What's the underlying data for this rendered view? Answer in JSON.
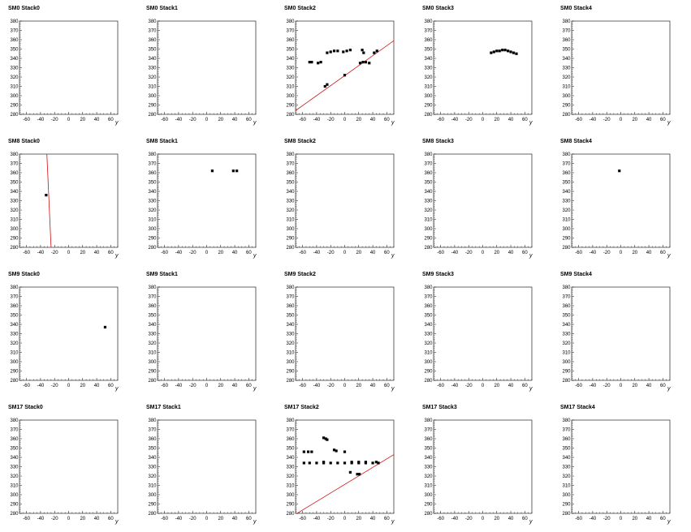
{
  "colors": {
    "fit_line": "#d01010",
    "hits": "#000000",
    "axes": "#000000"
  },
  "chart_data": [
    {
      "type": "scatter",
      "title": "SM0 Stack0",
      "xlabel": "y",
      "xlim": [
        -70,
        70
      ],
      "ylim": [
        280,
        380
      ],
      "xticks": [
        -60,
        -40,
        -20,
        0,
        20,
        40,
        60
      ],
      "yticks": [
        280,
        290,
        300,
        310,
        320,
        330,
        340,
        350,
        360,
        370,
        380
      ],
      "points": [],
      "lines": []
    },
    {
      "type": "scatter",
      "title": "SM0 Stack1",
      "xlabel": "y",
      "xlim": [
        -70,
        70
      ],
      "ylim": [
        280,
        380
      ],
      "xticks": [
        -60,
        -40,
        -20,
        0,
        20,
        40,
        60
      ],
      "yticks": [
        280,
        290,
        300,
        310,
        320,
        330,
        340,
        350,
        360,
        370,
        380
      ],
      "points": [],
      "lines": []
    },
    {
      "type": "scatter",
      "title": "SM0 Stack2",
      "xlabel": "y",
      "xlim": [
        -70,
        70
      ],
      "ylim": [
        280,
        380
      ],
      "xticks": [
        -60,
        -40,
        -20,
        0,
        20,
        40,
        60
      ],
      "yticks": [
        280,
        290,
        300,
        310,
        320,
        330,
        340,
        350,
        360,
        370,
        380
      ],
      "points": [
        [
          -50,
          336
        ],
        [
          -47,
          336
        ],
        [
          -38,
          335
        ],
        [
          -34,
          336
        ],
        [
          -25,
          346
        ],
        [
          -20,
          347
        ],
        [
          -15,
          348
        ],
        [
          -10,
          348
        ],
        [
          -2,
          347
        ],
        [
          3,
          348
        ],
        [
          8,
          349
        ],
        [
          -28,
          310
        ],
        [
          -25,
          312
        ],
        [
          0,
          322
        ],
        [
          25,
          349
        ],
        [
          27,
          346
        ],
        [
          22,
          335
        ],
        [
          26,
          336
        ],
        [
          30,
          336
        ],
        [
          35,
          335
        ],
        [
          42,
          346
        ],
        [
          46,
          348
        ]
      ],
      "lines": [
        [
          [
            -70,
            284
          ],
          [
            70,
            359
          ]
        ]
      ]
    },
    {
      "type": "scatter",
      "title": "SM0 Stack3",
      "xlabel": "y",
      "xlim": [
        -70,
        70
      ],
      "ylim": [
        280,
        380
      ],
      "xticks": [
        -60,
        -40,
        -20,
        0,
        20,
        40,
        60
      ],
      "yticks": [
        280,
        290,
        300,
        310,
        320,
        330,
        340,
        350,
        360,
        370,
        380
      ],
      "points": [
        [
          12,
          346
        ],
        [
          16,
          347
        ],
        [
          20,
          348
        ],
        [
          24,
          348
        ],
        [
          28,
          349
        ],
        [
          32,
          349
        ],
        [
          36,
          348
        ],
        [
          40,
          347
        ],
        [
          44,
          346
        ],
        [
          48,
          345
        ]
      ],
      "lines": []
    },
    {
      "type": "scatter",
      "title": "SM0 Stack4",
      "xlabel": "y",
      "xlim": [
        -70,
        70
      ],
      "ylim": [
        280,
        380
      ],
      "xticks": [
        -60,
        -40,
        -20,
        0,
        20,
        40,
        60
      ],
      "yticks": [
        280,
        290,
        300,
        310,
        320,
        330,
        340,
        350,
        360,
        370,
        380
      ],
      "points": [],
      "lines": []
    },
    {
      "type": "scatter",
      "title": "SM8 Stack0",
      "xlabel": "y",
      "xlim": [
        -70,
        70
      ],
      "ylim": [
        280,
        380
      ],
      "xticks": [
        -60,
        -40,
        -20,
        0,
        20,
        40,
        60
      ],
      "yticks": [
        280,
        290,
        300,
        310,
        320,
        330,
        340,
        350,
        360,
        370,
        380
      ],
      "points": [
        [
          -32,
          336
        ]
      ],
      "lines": [
        [
          [
            -31,
            380
          ],
          [
            -25,
            280
          ]
        ]
      ]
    },
    {
      "type": "scatter",
      "title": "SM8 Stack1",
      "xlabel": "y",
      "xlim": [
        -70,
        70
      ],
      "ylim": [
        280,
        380
      ],
      "xticks": [
        -60,
        -40,
        -20,
        0,
        20,
        40,
        60
      ],
      "yticks": [
        280,
        290,
        300,
        310,
        320,
        330,
        340,
        350,
        360,
        370,
        380
      ],
      "points": [
        [
          8,
          362
        ],
        [
          38,
          362
        ],
        [
          43,
          362
        ]
      ],
      "lines": []
    },
    {
      "type": "scatter",
      "title": "SM8 Stack2",
      "xlabel": "y",
      "xlim": [
        -70,
        70
      ],
      "ylim": [
        280,
        380
      ],
      "xticks": [
        -60,
        -40,
        -20,
        0,
        20,
        40,
        60
      ],
      "yticks": [
        280,
        290,
        300,
        310,
        320,
        330,
        340,
        350,
        360,
        370,
        380
      ],
      "points": [],
      "lines": []
    },
    {
      "type": "scatter",
      "title": "SM8 Stack3",
      "xlabel": "y",
      "xlim": [
        -70,
        70
      ],
      "ylim": [
        280,
        380
      ],
      "xticks": [
        -60,
        -40,
        -20,
        0,
        20,
        40,
        60
      ],
      "yticks": [
        280,
        290,
        300,
        310,
        320,
        330,
        340,
        350,
        360,
        370,
        380
      ],
      "points": [],
      "lines": []
    },
    {
      "type": "scatter",
      "title": "SM8 Stack4",
      "xlabel": "y",
      "xlim": [
        -70,
        70
      ],
      "ylim": [
        280,
        380
      ],
      "xticks": [
        -60,
        -40,
        -20,
        0,
        20,
        40,
        60
      ],
      "yticks": [
        280,
        290,
        300,
        310,
        320,
        330,
        340,
        350,
        360,
        370,
        380
      ],
      "points": [
        [
          -2,
          362
        ]
      ],
      "lines": []
    },
    {
      "type": "scatter",
      "title": "SM9 Stack0",
      "xlabel": "y",
      "xlim": [
        -70,
        70
      ],
      "ylim": [
        280,
        380
      ],
      "xticks": [
        -60,
        -40,
        -20,
        0,
        20,
        40,
        60
      ],
      "yticks": [
        280,
        290,
        300,
        310,
        320,
        330,
        340,
        350,
        360,
        370,
        380
      ],
      "points": [
        [
          52,
          337
        ]
      ],
      "lines": []
    },
    {
      "type": "scatter",
      "title": "SM9 Stack1",
      "xlabel": "y",
      "xlim": [
        -70,
        70
      ],
      "ylim": [
        280,
        380
      ],
      "xticks": [
        -60,
        -40,
        -20,
        0,
        20,
        40,
        60
      ],
      "yticks": [
        280,
        290,
        300,
        310,
        320,
        330,
        340,
        350,
        360,
        370,
        380
      ],
      "points": [],
      "lines": []
    },
    {
      "type": "scatter",
      "title": "SM9 Stack2",
      "xlabel": "y",
      "xlim": [
        -70,
        70
      ],
      "ylim": [
        280,
        380
      ],
      "xticks": [
        -60,
        -40,
        -20,
        0,
        20,
        40,
        60
      ],
      "yticks": [
        280,
        290,
        300,
        310,
        320,
        330,
        340,
        350,
        360,
        370,
        380
      ],
      "points": [],
      "lines": []
    },
    {
      "type": "scatter",
      "title": "SM9 Stack3",
      "xlabel": "y",
      "xlim": [
        -70,
        70
      ],
      "ylim": [
        280,
        380
      ],
      "xticks": [
        -60,
        -40,
        -20,
        0,
        20,
        40,
        60
      ],
      "yticks": [
        280,
        290,
        300,
        310,
        320,
        330,
        340,
        350,
        360,
        370,
        380
      ],
      "points": [],
      "lines": []
    },
    {
      "type": "scatter",
      "title": "SM9 Stack4",
      "xlabel": "y",
      "xlim": [
        -70,
        70
      ],
      "ylim": [
        280,
        380
      ],
      "xticks": [
        -60,
        -40,
        -20,
        0,
        20,
        40,
        60
      ],
      "yticks": [
        280,
        290,
        300,
        310,
        320,
        330,
        340,
        350,
        360,
        370,
        380
      ],
      "points": [],
      "lines": []
    },
    {
      "type": "scatter",
      "title": "SM17 Stack0",
      "xlabel": "y",
      "xlim": [
        -70,
        70
      ],
      "ylim": [
        280,
        380
      ],
      "xticks": [
        -60,
        -40,
        -20,
        0,
        20,
        40,
        60
      ],
      "yticks": [
        280,
        290,
        300,
        310,
        320,
        330,
        340,
        350,
        360,
        370,
        380
      ],
      "points": [],
      "lines": []
    },
    {
      "type": "scatter",
      "title": "SM17 Stack1",
      "xlabel": "y",
      "xlim": [
        -70,
        70
      ],
      "ylim": [
        280,
        380
      ],
      "xticks": [
        -60,
        -40,
        -20,
        0,
        20,
        40,
        60
      ],
      "yticks": [
        280,
        290,
        300,
        310,
        320,
        330,
        340,
        350,
        360,
        370,
        380
      ],
      "points": [],
      "lines": []
    },
    {
      "type": "scatter",
      "title": "SM17 Stack2",
      "xlabel": "y",
      "xlim": [
        -70,
        70
      ],
      "ylim": [
        280,
        380
      ],
      "xticks": [
        -60,
        -40,
        -20,
        0,
        20,
        40,
        60
      ],
      "yticks": [
        280,
        290,
        300,
        310,
        320,
        330,
        340,
        350,
        360,
        370,
        380
      ],
      "points": [
        [
          -58,
          346
        ],
        [
          -52,
          346
        ],
        [
          -47,
          346
        ],
        [
          -30,
          361
        ],
        [
          -27,
          360
        ],
        [
          -25,
          359
        ],
        [
          -15,
          348
        ],
        [
          -12,
          347
        ],
        [
          0,
          346
        ],
        [
          -30,
          335
        ],
        [
          -58,
          334
        ],
        [
          -50,
          334
        ],
        [
          -40,
          334
        ],
        [
          -30,
          334
        ],
        [
          -20,
          334
        ],
        [
          -10,
          334
        ],
        [
          0,
          334
        ],
        [
          10,
          334
        ],
        [
          20,
          334
        ],
        [
          30,
          334
        ],
        [
          40,
          334
        ],
        [
          48,
          334
        ],
        [
          10,
          335
        ],
        [
          20,
          335
        ],
        [
          30,
          335
        ],
        [
          45,
          335
        ],
        [
          8,
          324
        ],
        [
          18,
          322
        ],
        [
          21,
          322
        ]
      ],
      "lines": [
        [
          [
            -70,
            279
          ],
          [
            70,
            343
          ]
        ]
      ]
    },
    {
      "type": "scatter",
      "title": "SM17 Stack3",
      "xlabel": "y",
      "xlim": [
        -70,
        70
      ],
      "ylim": [
        280,
        380
      ],
      "xticks": [
        -60,
        -40,
        -20,
        0,
        20,
        40,
        60
      ],
      "yticks": [
        280,
        290,
        300,
        310,
        320,
        330,
        340,
        350,
        360,
        370,
        380
      ],
      "points": [],
      "lines": []
    },
    {
      "type": "scatter",
      "title": "SM17 Stack4",
      "xlabel": "y",
      "xlim": [
        -70,
        70
      ],
      "ylim": [
        280,
        380
      ],
      "xticks": [
        -60,
        -40,
        -20,
        0,
        20,
        40,
        60
      ],
      "yticks": [
        280,
        290,
        300,
        310,
        320,
        330,
        340,
        350,
        360,
        370,
        380
      ],
      "points": [],
      "lines": []
    }
  ]
}
